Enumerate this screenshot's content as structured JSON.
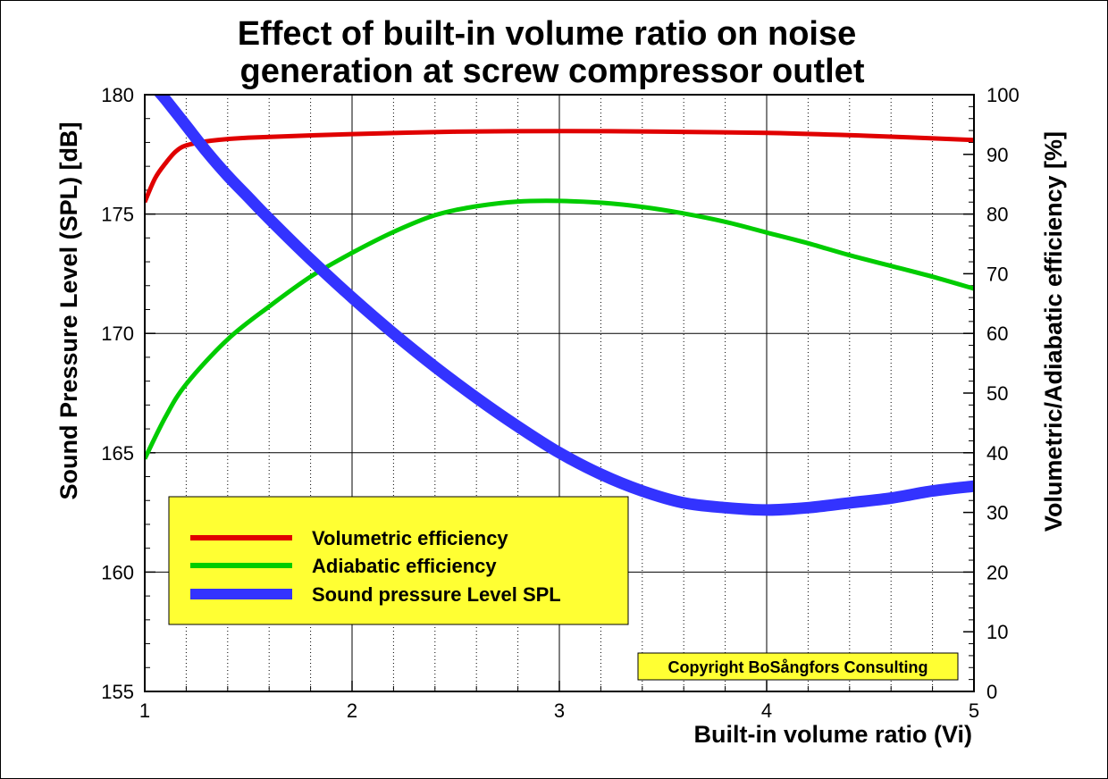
{
  "chart_data": {
    "type": "line",
    "title_line1": "Effect of built-in volume ratio on noise",
    "title_line2": "generation at screw compressor outlet",
    "xlabel": "Built-in volume ratio (Vi)",
    "ylabel_left": "Sound Pressure Level (SPL) [dB]",
    "ylabel_right": "Volumetric/Adiabatic efficiency [%]",
    "xlim": [
      1,
      5
    ],
    "ylim_left": [
      155,
      180
    ],
    "ylim_right": [
      0,
      100
    ],
    "x_ticks": [
      "1",
      "2",
      "3",
      "4",
      "5"
    ],
    "y_left_ticks": [
      "155",
      "160",
      "165",
      "170",
      "175",
      "180"
    ],
    "y_right_ticks": [
      "0",
      "10",
      "20",
      "30",
      "40",
      "50",
      "60",
      "70",
      "80",
      "90",
      "100"
    ],
    "grid": true,
    "legend_placement": "lower-left",
    "series": [
      {
        "name": "Volumetric efficiency",
        "axis": "right",
        "color": "#e00000",
        "x": [
          1.0,
          1.05,
          1.1,
          1.15,
          1.2,
          1.3,
          1.5,
          2.0,
          2.5,
          3.0,
          3.5,
          4.0,
          4.5,
          5.0
        ],
        "y": [
          82,
          86,
          88.5,
          90.5,
          91.5,
          92.2,
          92.8,
          93.4,
          93.8,
          93.9,
          93.8,
          93.6,
          93.1,
          92.4
        ]
      },
      {
        "name": "Adiabatic efficiency",
        "axis": "right",
        "color": "#00cc00",
        "x": [
          1.0,
          1.1,
          1.2,
          1.4,
          1.6,
          1.8,
          2.0,
          2.2,
          2.4,
          2.6,
          2.8,
          3.0,
          3.2,
          3.4,
          3.6,
          3.8,
          4.0,
          4.2,
          4.4,
          4.6,
          4.8,
          5.0
        ],
        "y": [
          39,
          46,
          51.5,
          59,
          64.5,
          69.5,
          73.5,
          77,
          79.8,
          81.3,
          82.1,
          82.2,
          81.9,
          81.2,
          80.1,
          78.7,
          76.9,
          75.1,
          73.1,
          71.3,
          69.5,
          67.5
        ]
      },
      {
        "name": "Sound pressure Level SPL",
        "axis": "left",
        "color": "#3333ff",
        "x": [
          1.05,
          1.1,
          1.2,
          1.3,
          1.4,
          1.5,
          1.6,
          1.8,
          2.0,
          2.2,
          2.4,
          2.6,
          2.8,
          3.0,
          3.2,
          3.4,
          3.6,
          3.8,
          4.0,
          4.2,
          4.4,
          4.6,
          4.8,
          5.0
        ],
        "y": [
          180.3,
          179.8,
          178.7,
          177.6,
          176.6,
          175.7,
          174.8,
          173.1,
          171.5,
          170.0,
          168.6,
          167.3,
          166.1,
          165.0,
          164.1,
          163.4,
          162.9,
          162.7,
          162.6,
          162.7,
          162.9,
          163.1,
          163.4,
          163.6
        ]
      }
    ],
    "annotation": "Copyright BoSångfors Consulting"
  }
}
